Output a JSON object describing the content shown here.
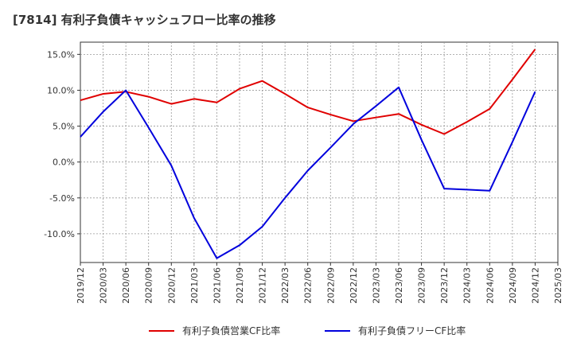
{
  "chart_data": {
    "type": "line",
    "title": "[7814]  有利子負債キャッシュフロー比率の推移",
    "xlabel": "",
    "ylabel": "",
    "categories": [
      "2019/12",
      "2020/03",
      "2020/06",
      "2020/09",
      "2020/12",
      "2021/03",
      "2021/06",
      "2021/09",
      "2021/12",
      "2022/03",
      "2022/06",
      "2022/09",
      "2022/12",
      "2023/03",
      "2023/06",
      "2023/09",
      "2023/12",
      "2024/03",
      "2024/06",
      "2024/09",
      "2024/12",
      "2025/03"
    ],
    "ylim": [
      -14.0,
      16.7
    ],
    "yticks": [
      15.0,
      10.0,
      5.0,
      0.0,
      -5.0,
      -10.0
    ],
    "ytick_labels": [
      "15.0%",
      "10.0%",
      "5.0%",
      "0.0%",
      "-5.0%",
      "-10.0%"
    ],
    "grid": true,
    "legend_position": "bottom",
    "series": [
      {
        "name": "有利子負債営業CF比率",
        "color": "#e00000",
        "values": [
          8.6,
          9.5,
          9.8,
          9.1,
          8.1,
          8.8,
          8.3,
          10.2,
          11.3,
          9.5,
          7.6,
          6.6,
          5.7,
          6.2,
          6.7,
          5.2,
          3.9,
          5.6,
          7.4,
          11.5,
          15.7,
          null
        ]
      },
      {
        "name": "有利子負債フリーCF比率",
        "color": "#0000dd",
        "values": [
          3.5,
          7.0,
          10.0,
          4.8,
          -0.5,
          -7.8,
          -13.4,
          -11.6,
          -9.0,
          -5.0,
          -1.2,
          2.0,
          5.3,
          7.8,
          10.4,
          3.1,
          -3.7,
          -3.85,
          -4.0,
          2.8,
          9.8,
          null
        ]
      }
    ]
  }
}
